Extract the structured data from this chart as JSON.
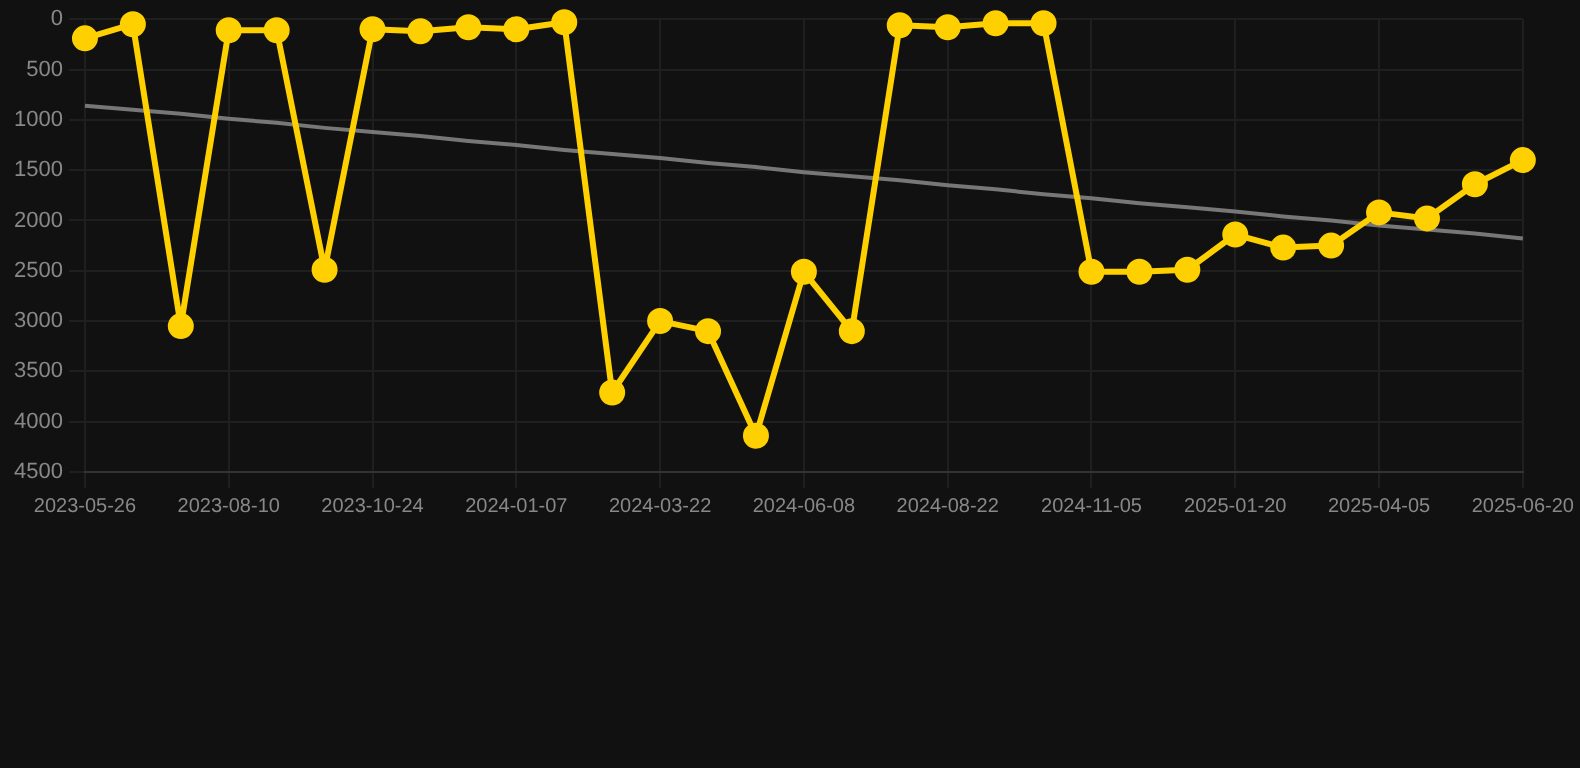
{
  "chart_data": {
    "type": "line",
    "categories": [
      "2023-05-26",
      null,
      null,
      "2023-08-10",
      null,
      null,
      "2023-10-24",
      null,
      null,
      "2024-01-07",
      null,
      null,
      "2024-03-22",
      null,
      null,
      "2024-06-08",
      null,
      null,
      "2024-08-22",
      null,
      null,
      "2024-11-05",
      null,
      null,
      "2025-01-20",
      null,
      null,
      "2025-04-05",
      null,
      null,
      "2025-06-20"
    ],
    "series": [
      {
        "color": "#ffd000",
        "marker": "circle",
        "values": [
          190,
          50,
          3050,
          110,
          110,
          2490,
          100,
          120,
          80,
          100,
          30,
          3710,
          3000,
          3100,
          4140,
          2510,
          3100,
          60,
          80,
          40,
          40,
          2510,
          2510,
          2490,
          2140,
          2270,
          2250,
          1920,
          1980,
          1640,
          1400
        ]
      },
      {
        "type": "line",
        "color": "#777777",
        "marker": "none",
        "values": [
          860,
          900,
          940,
          990,
          1030,
          1080,
          1120,
          1160,
          1210,
          1250,
          1300,
          1340,
          1380,
          1430,
          1470,
          1520,
          1560,
          1600,
          1650,
          1690,
          1740,
          1780,
          1830,
          1870,
          1910,
          1960,
          2000,
          2050,
          2090,
          2130,
          2180
        ]
      }
    ],
    "ylim": [
      4500,
      0
    ],
    "yticks": [
      0,
      500,
      1000,
      1500,
      2000,
      2500,
      3000,
      3500,
      4000,
      4500
    ],
    "grid": true,
    "legend": false
  }
}
